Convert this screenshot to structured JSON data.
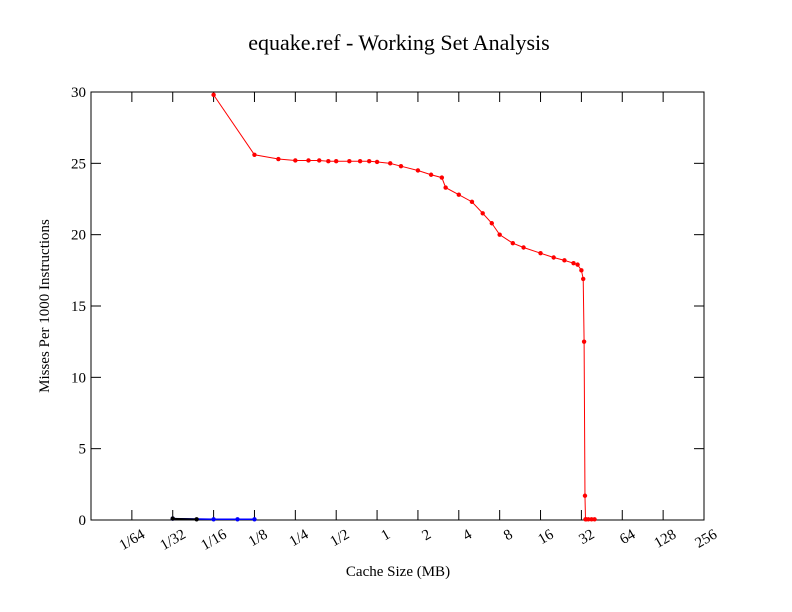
{
  "chart_data": {
    "type": "line",
    "title": "equake.ref - Working Set Analysis",
    "xlabel": "Cache Size (MB)",
    "ylabel": "Misses Per 1000 Instructions",
    "x_scale": "log2",
    "xlim_mb": [
      0.0078125,
      256
    ],
    "ylim": [
      0,
      30
    ],
    "x_ticks": [
      {
        "label": "1/64",
        "value": 0.015625
      },
      {
        "label": "1/32",
        "value": 0.03125
      },
      {
        "label": "1/16",
        "value": 0.0625
      },
      {
        "label": "1/8",
        "value": 0.125
      },
      {
        "label": "1/4",
        "value": 0.25
      },
      {
        "label": "1/2",
        "value": 0.5
      },
      {
        "label": "1",
        "value": 1
      },
      {
        "label": "2",
        "value": 2
      },
      {
        "label": "4",
        "value": 4
      },
      {
        "label": "8",
        "value": 8
      },
      {
        "label": "16",
        "value": 16
      },
      {
        "label": "32",
        "value": 32
      },
      {
        "label": "64",
        "value": 64
      },
      {
        "label": "128",
        "value": 128
      },
      {
        "label": "256",
        "value": 256
      }
    ],
    "y_ticks": [
      0,
      5,
      10,
      15,
      20,
      25,
      30
    ],
    "grid": false,
    "legend": "none",
    "series": [
      {
        "color": "#ff0000",
        "x": [
          0.0625,
          0.125,
          0.1875,
          0.25,
          0.3125,
          0.375,
          0.4375,
          0.5,
          0.625,
          0.75,
          0.875,
          1.0,
          1.25,
          1.5,
          2.0,
          2.5,
          3.0,
          3.2,
          4.0,
          5.0,
          6.0,
          7.0,
          8.0,
          10.0,
          12.0,
          16.0,
          20.0,
          24.0,
          28.0,
          30.0,
          32.0,
          33.0,
          33.5,
          34.0,
          34.3,
          34.6,
          36.0,
          38.0,
          40.0
        ],
        "y": [
          29.8,
          25.6,
          25.3,
          25.2,
          25.2,
          25.2,
          25.15,
          25.15,
          25.15,
          25.15,
          25.15,
          25.1,
          25.0,
          24.8,
          24.5,
          24.2,
          24.0,
          23.3,
          22.8,
          22.3,
          21.5,
          20.8,
          20.0,
          19.4,
          19.1,
          18.7,
          18.4,
          18.2,
          18.0,
          17.9,
          17.5,
          16.9,
          12.5,
          1.7,
          0.05,
          0.05,
          0.05,
          0.05,
          0.05
        ]
      },
      {
        "color": "#0000ff",
        "x": [
          0.03125,
          0.0625,
          0.09375,
          0.125
        ],
        "y": [
          0.1,
          0.05,
          0.05,
          0.05
        ]
      },
      {
        "color": "#000000",
        "x": [
          0.03125,
          0.046875
        ],
        "y": [
          0.1,
          0.05
        ]
      }
    ]
  }
}
